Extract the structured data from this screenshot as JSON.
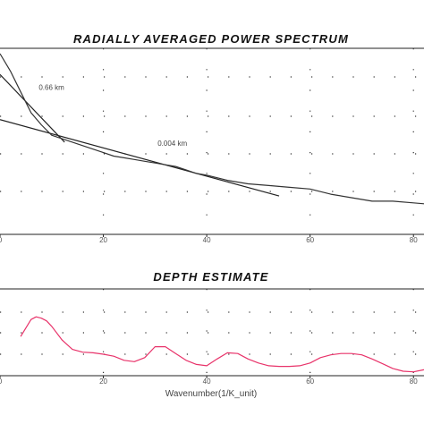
{
  "chart_data": [
    {
      "type": "line",
      "title": "RADIALLY AVERAGED POWER SPECTRUM",
      "xlim": [
        0,
        90
      ],
      "ylim": [
        0,
        1
      ],
      "x_ticks": [
        0,
        20,
        40,
        60,
        80
      ],
      "grid": "dotted",
      "series": [
        {
          "color": "#333333",
          "x": [
            0,
            2,
            4,
            6,
            8,
            10,
            12,
            14,
            16,
            18,
            20,
            22,
            24,
            26,
            28,
            30,
            32,
            34,
            36,
            38,
            40,
            44,
            48,
            52,
            56,
            60,
            64,
            68,
            72,
            76,
            80,
            84,
            88,
            90
          ],
          "y": [
            1.0,
            0.9,
            0.78,
            0.66,
            0.59,
            0.53,
            0.51,
            0.49,
            0.47,
            0.45,
            0.43,
            0.41,
            0.4,
            0.39,
            0.38,
            0.37,
            0.36,
            0.35,
            0.33,
            0.31,
            0.3,
            0.27,
            0.25,
            0.24,
            0.23,
            0.22,
            0.19,
            0.17,
            0.15,
            0.15,
            0.14,
            0.13,
            0.12,
            0.12
          ]
        }
      ],
      "fits": [
        {
          "color": "#222222",
          "x": [
            0,
            12.5
          ],
          "y": [
            0.88,
            0.49
          ]
        },
        {
          "color": "#222222",
          "x": [
            0,
            54
          ],
          "y": [
            0.62,
            0.18
          ]
        }
      ],
      "annotations": [
        {
          "text": "0.66 km",
          "x": 7.5,
          "y": 0.79
        },
        {
          "text": "0.004 km",
          "x": 30.5,
          "y": 0.47
        }
      ]
    },
    {
      "type": "line",
      "title": "DEPTH ESTIMATE",
      "xlabel": "Wavenumber(1/K_unit)",
      "xlim": [
        0,
        90
      ],
      "ylim": [
        0,
        1
      ],
      "x_ticks": [
        0,
        20,
        40,
        60,
        80
      ],
      "grid": "dotted",
      "series": [
        {
          "color": "#e8336a",
          "x": [
            4,
            6,
            7,
            8,
            9,
            10,
            12,
            14,
            16,
            18,
            20,
            22,
            24,
            26,
            28,
            30,
            32,
            34,
            36,
            38,
            40,
            42,
            44,
            46,
            48,
            50,
            52,
            54,
            56,
            58,
            60,
            62,
            64,
            66,
            68,
            70,
            72,
            74,
            76,
            78,
            80,
            82,
            84
          ],
          "y": [
            0.55,
            0.8,
            0.84,
            0.82,
            0.78,
            0.7,
            0.5,
            0.36,
            0.32,
            0.31,
            0.29,
            0.26,
            0.2,
            0.18,
            0.24,
            0.4,
            0.4,
            0.3,
            0.2,
            0.14,
            0.12,
            0.22,
            0.31,
            0.3,
            0.22,
            0.16,
            0.12,
            0.11,
            0.11,
            0.12,
            0.16,
            0.24,
            0.28,
            0.3,
            0.3,
            0.28,
            0.22,
            0.15,
            0.08,
            0.04,
            0.03,
            0.06,
            0.1
          ]
        }
      ]
    }
  ]
}
